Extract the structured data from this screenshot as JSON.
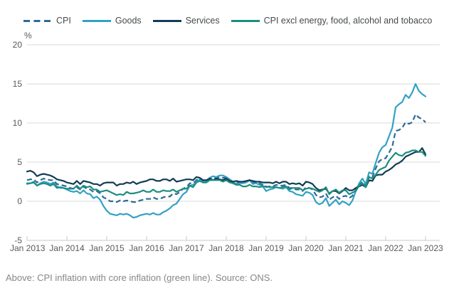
{
  "legend": {
    "items": [
      {
        "label": "CPI",
        "color": "#2d6a96",
        "dashed": true
      },
      {
        "label": "Goods",
        "color": "#33a1c4",
        "dashed": false
      },
      {
        "label": "Services",
        "color": "#123c55",
        "dashed": false
      },
      {
        "label": "CPI excl energy, food, alcohol and tobacco",
        "color": "#1d8d7f",
        "dashed": false
      }
    ]
  },
  "chart_data": {
    "type": "line",
    "title": "",
    "ylabel": "%",
    "ylim": [
      -5,
      20
    ],
    "y_ticks": [
      20,
      15,
      10,
      5,
      0,
      -5
    ],
    "x_tick_labels": [
      "Jan 2013",
      "Jan 2014",
      "Jan 2015",
      "Jan 2016",
      "Jan 2017",
      "Jan 2018",
      "Jan 2019",
      "Jan 2020",
      "Jan 2021",
      "Jan 2022",
      "Jan 2023"
    ],
    "frequency": "monthly",
    "grid": "horizontal",
    "legend_position": "top",
    "grid_color": "#d9d9d9",
    "axis_color": "#c9c9c9",
    "tick_label_color": "#595959",
    "series": [
      {
        "name": "CPI",
        "color": "#2d6a96",
        "style": "dashed",
        "values": [
          2.7,
          2.8,
          2.8,
          2.4,
          2.7,
          2.9,
          2.8,
          2.7,
          2.7,
          2.2,
          2.1,
          2.0,
          1.9,
          1.7,
          1.6,
          1.8,
          1.5,
          1.9,
          1.6,
          1.5,
          1.2,
          1.3,
          1.0,
          0.5,
          0.3,
          0.0,
          0.0,
          -0.1,
          0.1,
          0.0,
          0.1,
          0.0,
          -0.1,
          -0.1,
          0.1,
          0.2,
          0.3,
          0.3,
          0.5,
          0.3,
          0.3,
          0.5,
          0.6,
          0.6,
          1.0,
          0.9,
          1.2,
          1.6,
          1.8,
          2.3,
          2.3,
          2.7,
          2.9,
          2.6,
          2.6,
          2.9,
          3.0,
          3.0,
          3.1,
          3.0,
          3.0,
          2.7,
          2.5,
          2.4,
          2.4,
          2.4,
          2.5,
          2.7,
          2.4,
          2.4,
          2.3,
          2.1,
          1.8,
          1.9,
          1.9,
          2.1,
          2.0,
          2.0,
          2.1,
          1.7,
          1.7,
          1.5,
          1.5,
          1.3,
          1.8,
          1.7,
          1.5,
          0.8,
          0.5,
          0.6,
          1.0,
          0.2,
          0.5,
          0.7,
          0.3,
          0.6,
          0.7,
          0.4,
          0.7,
          1.5,
          2.1,
          2.5,
          2.0,
          3.2,
          3.1,
          4.2,
          5.1,
          5.4,
          5.5,
          6.2,
          7.0,
          9.0,
          9.1,
          9.4,
          10.1,
          9.9,
          10.1,
          11.1,
          10.7,
          10.5,
          10.1
        ]
      },
      {
        "name": "Goods",
        "color": "#33a1c4",
        "style": "solid",
        "values": [
          2.2,
          2.3,
          2.5,
          2.0,
          2.3,
          2.5,
          2.4,
          2.2,
          2.4,
          1.9,
          1.7,
          1.7,
          1.5,
          1.3,
          1.2,
          1.3,
          1.0,
          1.4,
          1.0,
          0.9,
          0.4,
          0.6,
          0.2,
          -0.6,
          -1.2,
          -1.6,
          -1.7,
          -1.8,
          -1.6,
          -1.7,
          -1.6,
          -1.8,
          -2.1,
          -2.0,
          -1.8,
          -1.7,
          -1.6,
          -1.7,
          -1.5,
          -1.7,
          -1.7,
          -1.4,
          -1.2,
          -0.9,
          -0.5,
          -0.3,
          0.3,
          0.9,
          1.2,
          2.0,
          2.1,
          2.4,
          2.8,
          2.6,
          2.6,
          3.0,
          3.2,
          3.1,
          3.3,
          3.3,
          3.1,
          2.8,
          2.5,
          2.2,
          2.3,
          2.3,
          2.4,
          2.7,
          2.2,
          2.3,
          2.1,
          1.9,
          1.3,
          1.5,
          1.6,
          1.8,
          1.7,
          1.6,
          1.8,
          1.3,
          1.2,
          0.9,
          0.8,
          0.7,
          1.2,
          1.1,
          0.8,
          -0.1,
          -0.4,
          -0.2,
          0.4,
          -0.6,
          -0.2,
          0.2,
          -0.4,
          0.0,
          -0.2,
          -0.5,
          0.1,
          1.3,
          2.3,
          2.9,
          2.2,
          3.7,
          3.5,
          4.9,
          6.2,
          6.9,
          7.2,
          8.3,
          9.4,
          12.0,
          12.4,
          12.7,
          13.6,
          13.2,
          13.9,
          15.0,
          14.1,
          13.7,
          13.4
        ]
      },
      {
        "name": "Services",
        "color": "#123c55",
        "style": "solid",
        "values": [
          3.8,
          3.9,
          3.7,
          3.2,
          3.4,
          3.5,
          3.4,
          3.3,
          3.1,
          2.8,
          2.7,
          2.6,
          2.4,
          2.3,
          2.2,
          2.6,
          2.2,
          2.6,
          2.5,
          2.4,
          2.2,
          2.2,
          2.0,
          2.3,
          2.4,
          2.4,
          2.4,
          2.0,
          2.2,
          2.2,
          2.4,
          2.3,
          2.5,
          2.2,
          2.4,
          2.5,
          2.6,
          2.8,
          2.8,
          2.6,
          2.6,
          2.8,
          2.8,
          2.6,
          2.9,
          2.5,
          2.6,
          2.7,
          2.8,
          2.8,
          2.7,
          3.1,
          3.0,
          2.7,
          2.7,
          2.9,
          2.7,
          2.9,
          2.8,
          2.7,
          2.9,
          2.6,
          2.5,
          2.6,
          2.5,
          2.5,
          2.6,
          2.7,
          2.6,
          2.5,
          2.5,
          2.4,
          2.4,
          2.4,
          2.3,
          2.5,
          2.3,
          2.5,
          2.5,
          2.2,
          2.3,
          2.2,
          2.3,
          2.0,
          2.5,
          2.4,
          2.2,
          1.7,
          1.4,
          1.5,
          1.6,
          1.0,
          1.3,
          1.3,
          1.0,
          1.3,
          1.7,
          1.4,
          1.4,
          1.7,
          1.9,
          2.1,
          1.8,
          2.7,
          2.6,
          3.3,
          3.4,
          3.4,
          3.8,
          4.0,
          4.3,
          4.7,
          4.9,
          5.2,
          5.7,
          5.9,
          6.1,
          6.3,
          6.3,
          6.8,
          6.0
        ]
      },
      {
        "name": "CPI excl energy, food, alcohol and tobacco",
        "color": "#1d8d7f",
        "style": "solid",
        "values": [
          2.3,
          2.3,
          2.4,
          2.0,
          2.2,
          2.3,
          2.2,
          2.0,
          2.2,
          1.7,
          1.8,
          1.7,
          1.6,
          1.6,
          1.6,
          2.0,
          1.6,
          2.0,
          1.8,
          1.9,
          1.5,
          1.5,
          1.2,
          1.3,
          1.4,
          1.2,
          1.0,
          0.8,
          0.9,
          0.8,
          1.2,
          1.0,
          1.0,
          1.1,
          1.2,
          1.4,
          1.2,
          1.2,
          1.5,
          1.2,
          1.2,
          1.4,
          1.3,
          1.3,
          1.5,
          1.2,
          1.4,
          1.6,
          1.6,
          2.0,
          1.8,
          2.4,
          2.6,
          2.4,
          2.4,
          2.7,
          2.7,
          2.7,
          2.7,
          2.5,
          2.7,
          2.4,
          2.3,
          2.1,
          2.1,
          1.9,
          1.9,
          2.1,
          1.9,
          1.9,
          1.8,
          1.9,
          1.9,
          1.8,
          1.8,
          1.8,
          1.7,
          1.8,
          1.9,
          1.5,
          1.7,
          1.7,
          1.7,
          1.4,
          1.6,
          1.7,
          1.6,
          1.4,
          1.2,
          1.4,
          1.8,
          0.9,
          1.3,
          1.5,
          1.1,
          1.4,
          1.4,
          0.9,
          1.1,
          1.3,
          2.0,
          2.3,
          1.8,
          3.1,
          2.9,
          3.4,
          4.0,
          4.2,
          4.4,
          5.2,
          5.7,
          6.2,
          5.9,
          5.8,
          6.2,
          6.3,
          6.5,
          6.5,
          6.3,
          6.3,
          5.8
        ]
      }
    ]
  },
  "caption": "Above: CPI inflation with core inflation (green line). Source: ONS."
}
